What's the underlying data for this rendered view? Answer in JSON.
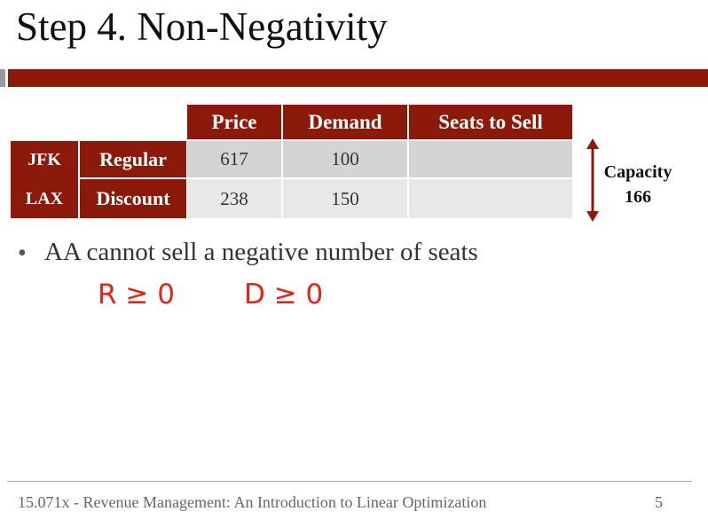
{
  "title": "Step 4. Non-Negativity",
  "table": {
    "headers": [
      "Price",
      "Demand",
      "Seats to Sell"
    ],
    "route": {
      "from": "JFK",
      "to": "LAX"
    },
    "rows": [
      {
        "label": "Regular",
        "price": "617",
        "demand": "100"
      },
      {
        "label": "Discount",
        "price": "238",
        "demand": "150"
      }
    ]
  },
  "capacity": {
    "label": "Capacity",
    "value": "166"
  },
  "bullets": [
    "AA cannot sell a negative number of seats"
  ],
  "annotations": [
    "R ≥ 0",
    "D ≥ 0"
  ],
  "footer": {
    "text": "15.071x - Revenue Management: An Introduction to Linear Optimization",
    "page": "5"
  }
}
